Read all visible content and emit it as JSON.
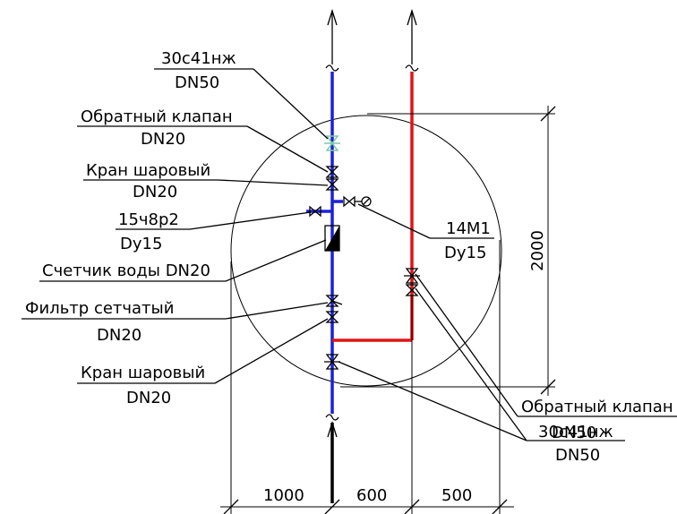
{
  "colors": {
    "cold_pipe": "#1a22d6",
    "hot_pipe": "#e01515",
    "line": "#000000",
    "check_valve_top": "#7fc9a8"
  },
  "labels": {
    "gate_valve_top": [
      "30с41нж",
      "DN50"
    ],
    "check_valve_top": [
      "Обратный клапан",
      "DN20"
    ],
    "ball_valve_top": [
      "Кран шаровый",
      "DN20"
    ],
    "tap_15ch8r2": [
      "15ч8р2",
      "Dy15"
    ],
    "water_meter": [
      "Счетчик воды DN20"
    ],
    "mesh_filter": [
      "Фильтр сетчатый",
      "DN20"
    ],
    "ball_valve_bottom": [
      "Кран шаровый",
      "DN20"
    ],
    "manometer_14m1": [
      "14М1",
      "Dy15"
    ],
    "check_valve_hot": [
      "Обратный клапан",
      "DN50"
    ],
    "gate_valve_hot": [
      "30с41нж",
      "DN50"
    ]
  },
  "dimensions": {
    "horizontal": [
      "1000",
      "600",
      "500"
    ],
    "vertical": "2000"
  },
  "icons": [
    "arrow-up-icon",
    "break-mark-icon",
    "valve-icon",
    "check-valve-icon",
    "filter-icon",
    "water-meter-icon",
    "manometer-icon"
  ]
}
